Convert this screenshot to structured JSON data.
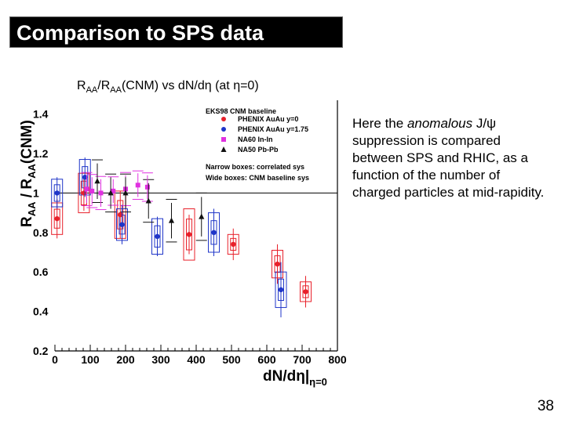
{
  "slide": {
    "title": "Comparison to SPS data",
    "caption": {
      "part1": "R",
      "sub1": "AA",
      "part2": "/R",
      "sub2": "AA",
      "part3": "(CNM) vs d",
      "part4": "N/dη (at η=0)"
    },
    "description": {
      "before": "Here the ",
      "emphasis": "anomalous",
      "after": " J/ψ suppression is compared between SPS and RHIC, as a function of the number of charged particles at mid-rapidity."
    },
    "page_number": "38"
  },
  "chart_data": {
    "type": "scatter",
    "xlabel": {
      "main": "dN/dη|",
      "sub": "η=0"
    },
    "ylabel": {
      "r1": "R",
      "s1": "AA",
      "mid": " / R",
      "s2": "AA",
      "end": "(CNM)"
    },
    "xlim": [
      0,
      800
    ],
    "ylim": [
      0.2,
      1.45
    ],
    "x_ticks": [
      0,
      100,
      200,
      300,
      400,
      500,
      600,
      700,
      800
    ],
    "y_ticks": [
      0.2,
      0.4,
      0.6,
      0.8,
      1,
      1.2,
      1.4
    ],
    "x_tick_labels": [
      "0",
      "100",
      "200",
      "300",
      "400",
      "500",
      "600",
      "700",
      "800"
    ],
    "y_tick_labels": [
      "0.2",
      "0.4",
      "0.6",
      "0.8",
      "1",
      "1.2",
      "1.4"
    ],
    "reference_line": 1,
    "legend_position": "top-right",
    "legend": {
      "title": "EKS98 CNM baseline",
      "note1": "Narrow boxes: correlated sys",
      "note2": "Wide boxes: CNM baseline sys"
    },
    "series": [
      {
        "name": "PHENIX AuAu y=0",
        "color": "#e8202a",
        "marker": "circle",
        "points": [
          {
            "x": 6,
            "y": 0.87,
            "err": 0.1,
            "box": 0.08
          },
          {
            "x": 82,
            "y": 1.0,
            "err": 0.09,
            "box": 0.1
          },
          {
            "x": 185,
            "y": 0.89,
            "err": 0.12,
            "box": 0.12
          },
          {
            "x": 380,
            "y": 0.79,
            "err": 0.1,
            "box": 0.13
          },
          {
            "x": 505,
            "y": 0.74,
            "err": 0.08,
            "box": 0.05
          },
          {
            "x": 630,
            "y": 0.64,
            "err": 0.1,
            "box": 0.07
          },
          {
            "x": 710,
            "y": 0.5,
            "err": 0.08,
            "box": 0.05
          }
        ]
      },
      {
        "name": "PHENIX AuAu y=1.75",
        "color": "#1f35c8",
        "marker": "circle",
        "points": [
          {
            "x": 6,
            "y": 1.0,
            "err": 0.08,
            "box": 0.07
          },
          {
            "x": 85,
            "y": 1.08,
            "err": 0.1,
            "box": 0.09
          },
          {
            "x": 190,
            "y": 0.84,
            "err": 0.1,
            "box": 0.08
          },
          {
            "x": 290,
            "y": 0.78,
            "err": 0.1,
            "box": 0.09
          },
          {
            "x": 450,
            "y": 0.8,
            "err": 0.12,
            "box": 0.1
          },
          {
            "x": 640,
            "y": 0.51,
            "err": 0.14,
            "box": 0.09
          }
        ]
      },
      {
        "name": "NA60 In-In",
        "color": "#e030e0",
        "marker": "square",
        "points": [
          {
            "x": 90,
            "y": 1.02,
            "err": 0.07
          },
          {
            "x": 105,
            "y": 1.01,
            "err": 0.07
          },
          {
            "x": 130,
            "y": 1.0,
            "err": 0.07
          },
          {
            "x": 165,
            "y": 1.01,
            "err": 0.06
          },
          {
            "x": 200,
            "y": 1.02,
            "err": 0.07
          },
          {
            "x": 235,
            "y": 1.04,
            "err": 0.06
          },
          {
            "x": 262,
            "y": 1.03,
            "err": 0.06
          }
        ]
      },
      {
        "name": "NA50 Pb-Pb",
        "color": "#111111",
        "marker": "triangle",
        "points": [
          {
            "x": 120,
            "y": 1.06,
            "err": 0.09
          },
          {
            "x": 158,
            "y": 1.0,
            "err": 0.08
          },
          {
            "x": 200,
            "y": 1.0,
            "err": 0.08
          },
          {
            "x": 265,
            "y": 0.96,
            "err": 0.09
          },
          {
            "x": 330,
            "y": 0.86,
            "err": 0.09
          },
          {
            "x": 415,
            "y": 0.88,
            "err": 0.1
          }
        ]
      }
    ]
  }
}
